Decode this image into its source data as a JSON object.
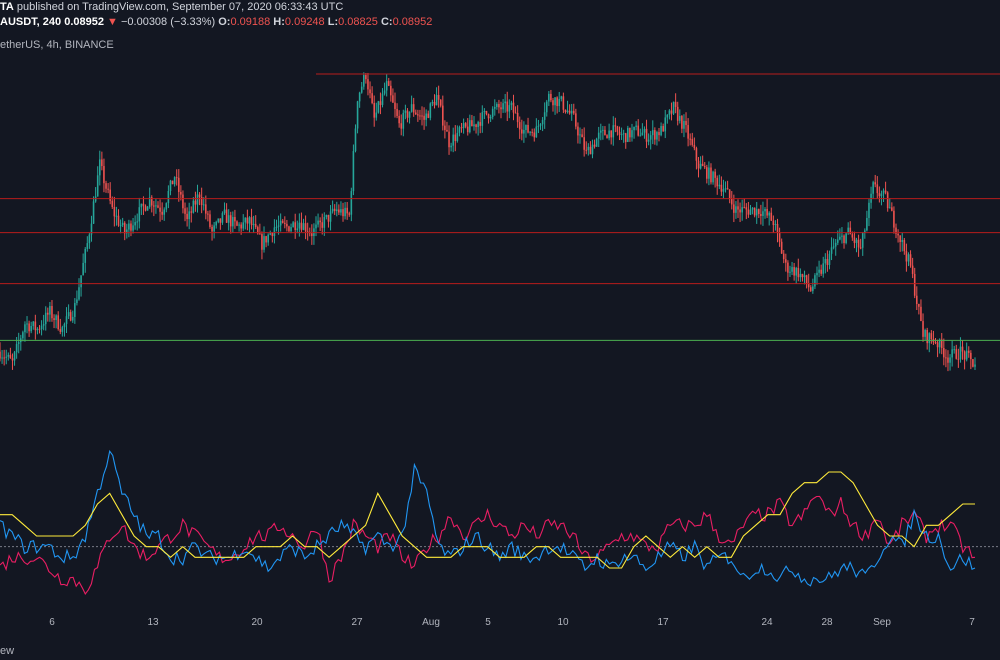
{
  "header": {
    "author": "TA",
    "published_text": "published on TradingView.com, September 07, 2020 06:33:43 UTC",
    "symbol": "AUSDT, 240",
    "last_price": "0.08952",
    "change_arrow": "▼",
    "change": "−0.00308 (−3.33%)",
    "o_label": "O:",
    "o_value": "0.09188",
    "h_label": "H:",
    "h_value": "0.09248",
    "l_label": "L:",
    "l_value": "0.08825",
    "c_label": "C:",
    "c_value": "0.08952",
    "series_title": "etherUS, 4h, BINANCE"
  },
  "footer": {
    "text": "ew"
  },
  "colors": {
    "background": "#131722",
    "up": "#26a69a",
    "down": "#ef5350",
    "resistance": "#b71c1c",
    "support": "#4caf50",
    "ind_pink": "#e91e63",
    "ind_blue": "#2196f3",
    "ind_yellow": "#ffeb3b"
  },
  "chart_data": {
    "type": "candlestick",
    "x_tick_labels": [
      "6",
      "13",
      "20",
      "27",
      "Aug",
      "5",
      "10",
      "17",
      "24",
      "28",
      "Sep",
      "7"
    ],
    "price_path": [
      [
        0,
        0.0905
      ],
      [
        6,
        0.0895
      ],
      [
        12,
        0.093
      ],
      [
        18,
        0.0925
      ],
      [
        24,
        0.094
      ],
      [
        30,
        0.0925
      ],
      [
        36,
        0.0945
      ],
      [
        42,
        0.1
      ],
      [
        48,
        0.107
      ],
      [
        54,
        0.103
      ],
      [
        60,
        0.101
      ],
      [
        66,
        0.1025
      ],
      [
        72,
        0.104
      ],
      [
        78,
        0.103
      ],
      [
        84,
        0.106
      ],
      [
        90,
        0.102
      ],
      [
        96,
        0.1045
      ],
      [
        102,
        0.101
      ],
      [
        108,
        0.1025
      ],
      [
        114,
        0.1015
      ],
      [
        120,
        0.102
      ],
      [
        126,
        0.1
      ],
      [
        132,
        0.1015
      ],
      [
        138,
        0.1015
      ],
      [
        144,
        0.102
      ],
      [
        150,
        0.101
      ],
      [
        156,
        0.102
      ],
      [
        162,
        0.103
      ],
      [
        168,
        0.1025
      ],
      [
        172,
        0.113
      ],
      [
        176,
        0.115
      ],
      [
        180,
        0.111
      ],
      [
        186,
        0.114
      ],
      [
        192,
        0.1105
      ],
      [
        198,
        0.112
      ],
      [
        204,
        0.111
      ],
      [
        210,
        0.113
      ],
      [
        216,
        0.109
      ],
      [
        222,
        0.11
      ],
      [
        228,
        0.1105
      ],
      [
        234,
        0.1115
      ],
      [
        240,
        0.112
      ],
      [
        246,
        0.112
      ],
      [
        252,
        0.11
      ],
      [
        258,
        0.11
      ],
      [
        264,
        0.113
      ],
      [
        270,
        0.1125
      ],
      [
        276,
        0.111
      ],
      [
        282,
        0.108
      ],
      [
        288,
        0.1095
      ],
      [
        294,
        0.11
      ],
      [
        300,
        0.1095
      ],
      [
        306,
        0.11
      ],
      [
        312,
        0.1095
      ],
      [
        318,
        0.11
      ],
      [
        324,
        0.112
      ],
      [
        330,
        0.11
      ],
      [
        336,
        0.107
      ],
      [
        342,
        0.106
      ],
      [
        348,
        0.105
      ],
      [
        354,
        0.103
      ],
      [
        360,
        0.103
      ],
      [
        366,
        0.103
      ],
      [
        372,
        0.102
      ],
      [
        378,
        0.098
      ],
      [
        384,
        0.0975
      ],
      [
        390,
        0.096
      ],
      [
        396,
        0.098
      ],
      [
        402,
        0.1
      ],
      [
        408,
        0.101
      ],
      [
        414,
        0.0995
      ],
      [
        420,
        0.105
      ],
      [
        426,
        0.104
      ],
      [
        432,
        0.101
      ],
      [
        438,
        0.098
      ],
      [
        444,
        0.092
      ],
      [
        450,
        0.0915
      ],
      [
        456,
        0.09
      ],
      [
        462,
        0.0905
      ],
      [
        468,
        0.0895
      ]
    ],
    "resistance_levels": [
      0.115,
      0.104,
      0.101,
      0.0965
    ],
    "support_level": 0.0915,
    "indicator_series": [
      {
        "color": "pink",
        "values": [
          -2,
          -1,
          -1,
          -1,
          -2,
          -3,
          -3,
          -4,
          -2,
          1,
          2,
          0,
          -1,
          0,
          1,
          2,
          1,
          0,
          -1,
          -1,
          0,
          1,
          1,
          2,
          1,
          0,
          2,
          -3,
          -1,
          2,
          1,
          0,
          1,
          -1,
          -2,
          0,
          1,
          3,
          1,
          2,
          3,
          2,
          1,
          2,
          1,
          2,
          2,
          1,
          -1,
          -1,
          0,
          1,
          1,
          0,
          0,
          2,
          2,
          2,
          3,
          1,
          0,
          2,
          3,
          3,
          4,
          2,
          3,
          5,
          3,
          4,
          2,
          1,
          3,
          0,
          2,
          3,
          1,
          2,
          2,
          0,
          -1
        ]
      },
      {
        "color": "blue",
        "values": [
          2,
          1,
          0,
          0,
          0,
          -1,
          -1,
          1,
          5,
          9,
          5,
          3,
          1,
          1,
          -1,
          -1,
          0,
          -1,
          -1,
          -1,
          0,
          -1,
          -2,
          -1,
          0,
          -1,
          0,
          1,
          2,
          1,
          0,
          1,
          0,
          1,
          7,
          5,
          0,
          -1,
          0,
          1,
          0,
          -1,
          0,
          -1,
          -1,
          0,
          0,
          -1,
          -2,
          -1,
          -2,
          -1,
          -1,
          -2,
          -1,
          0,
          -1,
          0,
          -2,
          -1,
          -1,
          -3,
          -2,
          -2,
          -3,
          -2,
          -3,
          -3,
          -3,
          -2,
          -2,
          -3,
          -1,
          1,
          0,
          3,
          1,
          1,
          -2,
          -1,
          -2
        ]
      },
      {
        "color": "yellow",
        "values": [
          3,
          3,
          2,
          1,
          1,
          1,
          1,
          2,
          4,
          5,
          3,
          1,
          0,
          0,
          -1,
          0,
          -1,
          -1,
          -1,
          -1,
          -1,
          0,
          0,
          0,
          1,
          0,
          0,
          -1,
          0,
          1,
          2,
          5,
          3,
          1,
          0,
          -1,
          -1,
          -1,
          0,
          0,
          0,
          -1,
          -1,
          -1,
          0,
          0,
          -1,
          -1,
          -1,
          -1,
          -2,
          -2,
          0,
          1,
          0,
          -1,
          0,
          -1,
          0,
          -1,
          -1,
          1,
          2,
          3,
          3,
          5,
          6,
          6,
          7,
          7,
          6,
          4,
          2,
          1,
          1,
          0,
          2,
          2,
          3,
          4,
          4
        ]
      }
    ]
  }
}
